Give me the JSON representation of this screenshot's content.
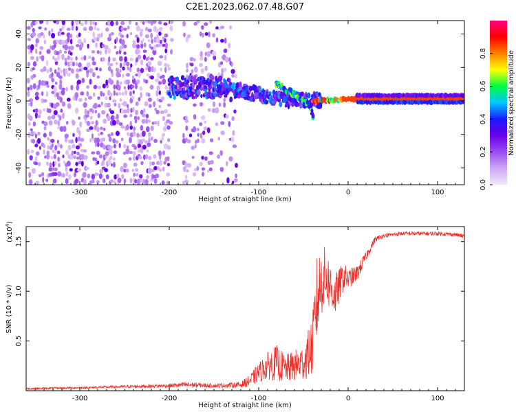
{
  "title": "C2E1.2023.062.07.48.G07",
  "colors": {
    "signal_line": "#e8302a",
    "frame": "#000000",
    "background": "#ffffff"
  },
  "chart_data": [
    {
      "type": "heatmap",
      "name": "spectrogram",
      "xlabel": "Height of straight line (km)",
      "ylabel": "Frequency (Hz)",
      "xlim": [
        -360,
        130
      ],
      "ylim": [
        -50,
        48
      ],
      "xticks": [
        -300,
        -200,
        -100,
        0,
        100
      ],
      "yticks": [
        -40,
        -20,
        0,
        20,
        40
      ],
      "colorbar": {
        "label": "Normalized spectral amplitude",
        "range": [
          0,
          1
        ],
        "ticks": [
          0.0,
          0.2,
          0.4,
          0.6,
          0.8
        ],
        "tick_labels": [
          "0.0",
          "0.2",
          "0.4",
          "0.6",
          "0.8"
        ],
        "colormap": [
          "#f4e8fc",
          "#cfa8f4",
          "#9a4cf2",
          "#6a00e8",
          "#1a1aff",
          "#00c8ff",
          "#00ff40",
          "#ffff00",
          "#ff8000",
          "#ff0000",
          "#ff0080"
        ]
      },
      "features": [
        {
          "name": "noise",
          "x_range": [
            -360,
            -120
          ],
          "amplitude": 0.15
        },
        {
          "name": "main track",
          "points": [
            [
              -200,
              8
            ],
            [
              -150,
              8
            ],
            [
              -120,
              6
            ],
            [
              -100,
              4
            ],
            [
              -80,
              2
            ],
            [
              -60,
              0
            ],
            [
              -45,
              1
            ],
            [
              -30,
              0
            ],
            [
              0,
              2
            ],
            [
              130,
              2
            ]
          ],
          "amplitude": 0.35
        },
        {
          "name": "secondary track",
          "points": [
            [
              -80,
              10
            ],
            [
              -60,
              4
            ],
            [
              -45,
              -2
            ],
            [
              -38,
              -10
            ]
          ],
          "amplitude": 0.5
        },
        {
          "name": "steady tone",
          "points": [
            [
              -40,
              0
            ],
            [
              0,
              1
            ],
            [
              130,
              1
            ]
          ],
          "amplitude": 0.85
        }
      ]
    },
    {
      "type": "line",
      "name": "snr",
      "xlabel": "Height of straight line (km)",
      "ylabel": "SNR (10 * v/v)",
      "ymultiplier": "(x10",
      "ymultiplier_exp": "4",
      "ymultiplier_close": ")",
      "xlim": [
        -360,
        130
      ],
      "ylim": [
        0,
        1.65
      ],
      "xticks": [
        -300,
        -200,
        -100,
        0,
        100
      ],
      "yticks": [
        0.5,
        1.0,
        1.5
      ],
      "ytick_labels": [
        "0.5",
        "1.0",
        "1.5"
      ],
      "unit_scale": 10000,
      "series": [
        {
          "x": [
            -360,
            -300,
            -250,
            -200,
            -180,
            -150,
            -120,
            -110,
            -100,
            -90,
            -80,
            -70,
            -60,
            -50,
            -40,
            -35,
            -30,
            -25,
            -20,
            -15,
            -10,
            -5,
            0,
            10,
            20,
            30,
            40,
            60,
            80,
            100,
            120,
            130
          ],
          "y": [
            0.02,
            0.03,
            0.04,
            0.05,
            0.06,
            0.05,
            0.06,
            0.1,
            0.18,
            0.25,
            0.28,
            0.22,
            0.25,
            0.28,
            0.45,
            0.9,
            1.1,
            1.15,
            1.05,
            0.95,
            1.05,
            1.15,
            1.12,
            1.18,
            1.35,
            1.52,
            1.56,
            1.58,
            1.58,
            1.58,
            1.57,
            1.55
          ],
          "noise": [
            0.01,
            0.01,
            0.015,
            0.02,
            0.03,
            0.02,
            0.03,
            0.06,
            0.1,
            0.14,
            0.18,
            0.14,
            0.16,
            0.18,
            0.3,
            0.45,
            0.35,
            0.3,
            0.25,
            0.22,
            0.18,
            0.15,
            0.1,
            0.08,
            0.05,
            0.03,
            0.02,
            0.02,
            0.02,
            0.02,
            0.02,
            0.02
          ]
        }
      ]
    }
  ]
}
